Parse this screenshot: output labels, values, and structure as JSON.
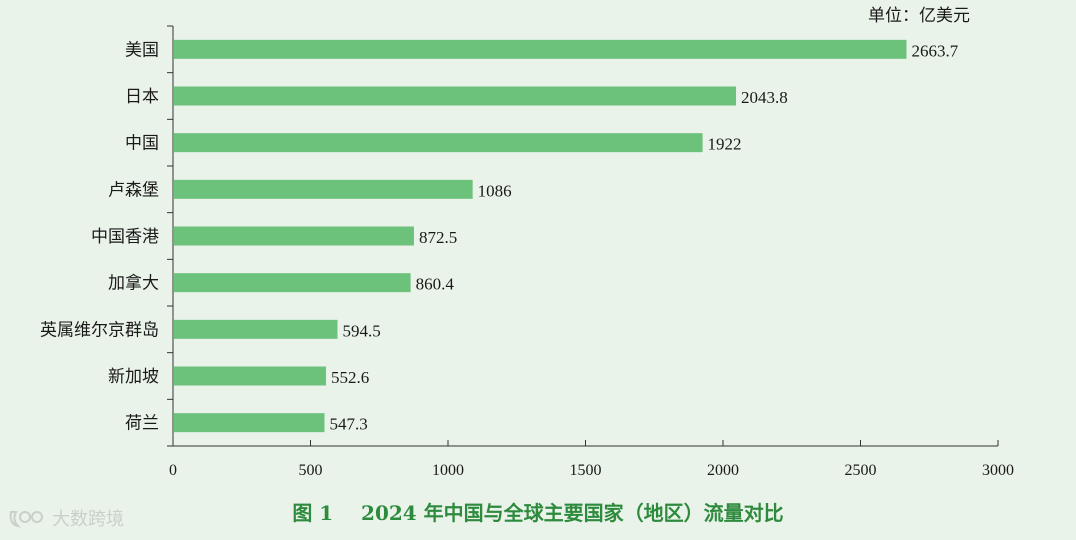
{
  "chart_data": {
    "type": "bar",
    "orientation": "horizontal",
    "categories": [
      "美国",
      "日本",
      "中国",
      "卢森堡",
      "中国香港",
      "加拿大",
      "英属维尔京群岛",
      "新加坡",
      "荷兰"
    ],
    "values": [
      2663.7,
      2043.8,
      1922,
      1086,
      872.5,
      860.4,
      594.5,
      552.6,
      547.3
    ],
    "value_labels": [
      "2663.7",
      "2043.8",
      "1922",
      "1086",
      "872.5",
      "860.4",
      "594.5",
      "552.6",
      "547.3"
    ],
    "xlim": [
      0,
      3000
    ],
    "xticks": [
      0,
      500,
      1000,
      1500,
      2000,
      2500,
      3000
    ],
    "unit": "单位：亿美元",
    "title": "图 1    2024 年中国与全球主要国家（地区）流量对比",
    "bar_color": "#6cc27b",
    "grid": false
  },
  "watermark": {
    "text": "大数跨境"
  }
}
